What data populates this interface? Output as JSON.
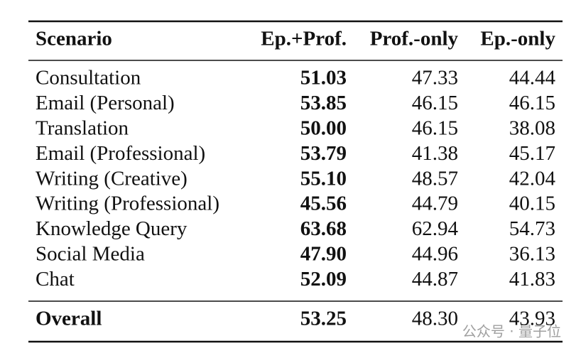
{
  "table": {
    "header": [
      "Scenario",
      "Ep.+Prof.",
      "Prof.-only",
      "Ep.-only"
    ],
    "rows": [
      [
        "Consultation",
        "51.03",
        "47.33",
        "44.44"
      ],
      [
        "Email (Personal)",
        "53.85",
        "46.15",
        "46.15"
      ],
      [
        "Translation",
        "50.00",
        "46.15",
        "38.08"
      ],
      [
        "Email (Professional)",
        "53.79",
        "41.38",
        "45.17"
      ],
      [
        "Writing (Creative)",
        "55.10",
        "48.57",
        "42.04"
      ],
      [
        "Writing (Professional)",
        "45.56",
        "44.79",
        "40.15"
      ],
      [
        "Knowledge Query",
        "63.68",
        "62.94",
        "54.73"
      ],
      [
        "Social Media",
        "47.90",
        "44.96",
        "36.13"
      ],
      [
        "Chat",
        "52.09",
        "44.87",
        "41.83"
      ]
    ],
    "footer": [
      "Overall",
      "53.25",
      "48.30",
      "43.93"
    ]
  },
  "watermark": "公众号 · 量子位"
}
